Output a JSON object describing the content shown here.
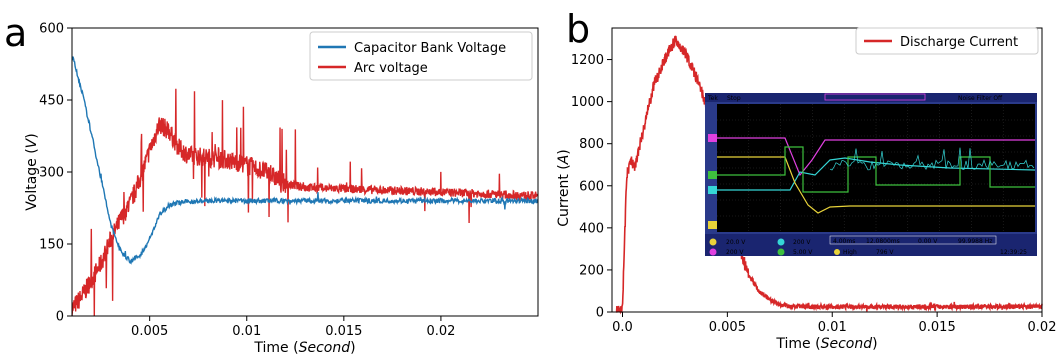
{
  "panels": {
    "a": {
      "letter": "a"
    },
    "b": {
      "letter": "b"
    }
  },
  "chart_data": [
    {
      "type": "line",
      "panel": "a",
      "xlabel": "Time (Second)",
      "ylabel": "Voltage (V)",
      "xlim": [
        0.001,
        0.025
      ],
      "ylim": [
        0,
        600
      ],
      "xticks": [
        0.005,
        0.01,
        0.015,
        0.02
      ],
      "xtick_labels": [
        "0.005",
        "0.01",
        "0.015",
        "0.02"
      ],
      "yticks": [
        0,
        150,
        300,
        450,
        600
      ],
      "ytick_labels": [
        "0",
        "150",
        "300",
        "450",
        "600"
      ],
      "legend_position": "top-right",
      "series": [
        {
          "name": "Capacitor Bank Voltage",
          "color": "#1f77b4",
          "x": [
            0.001,
            0.0015,
            0.002,
            0.0025,
            0.003,
            0.0035,
            0.004,
            0.0045,
            0.005,
            0.0055,
            0.006,
            0.0065,
            0.007,
            0.008,
            0.01,
            0.012,
            0.015,
            0.02,
            0.025
          ],
          "y": [
            545,
            470,
            380,
            285,
            190,
            135,
            115,
            125,
            160,
            210,
            232,
            236,
            238,
            240,
            240,
            240,
            240,
            240,
            240
          ]
        },
        {
          "name": "Arc voltage",
          "color": "#d62728",
          "x": [
            0.001,
            0.0015,
            0.002,
            0.0025,
            0.003,
            0.0035,
            0.004,
            0.0045,
            0.005,
            0.0055,
            0.006,
            0.0065,
            0.007,
            0.008,
            0.009,
            0.01,
            0.011,
            0.012,
            0.013,
            0.015,
            0.017,
            0.02,
            0.022,
            0.025
          ],
          "y": [
            15,
            40,
            75,
            110,
            160,
            200,
            235,
            285,
            345,
            400,
            385,
            350,
            335,
            330,
            325,
            315,
            300,
            275,
            268,
            265,
            262,
            258,
            255,
            250
          ]
        }
      ]
    },
    {
      "type": "line",
      "panel": "b",
      "xlabel": "Time (Second)",
      "ylabel": "Current (A)",
      "xlim": [
        -0.0005,
        0.02
      ],
      "ylim": [
        0,
        1350
      ],
      "xticks": [
        0,
        0.005,
        0.01,
        0.015,
        0.02
      ],
      "xtick_labels": [
        "0.0",
        "0.005",
        "0.01",
        "0.015",
        "0.02"
      ],
      "yticks": [
        0,
        200,
        400,
        600,
        800,
        1000,
        1200
      ],
      "ytick_labels": [
        "0",
        "200",
        "400",
        "600",
        "800",
        "1000",
        "1200"
      ],
      "legend_position": "top-right",
      "series": [
        {
          "name": "Discharge Current",
          "color": "#d62728",
          "x": [
            -0.0003,
            0.0,
            0.0002,
            0.0004,
            0.0006,
            0.001,
            0.0015,
            0.002,
            0.0025,
            0.003,
            0.0035,
            0.004,
            0.0045,
            0.005,
            0.0055,
            0.006,
            0.0065,
            0.007,
            0.0075,
            0.008,
            0.01,
            0.015,
            0.02
          ],
          "y": [
            0,
            20,
            650,
            720,
            690,
            870,
            1080,
            1200,
            1290,
            1230,
            1120,
            980,
            820,
            580,
            330,
            180,
            100,
            60,
            35,
            25,
            25,
            25,
            25
          ]
        }
      ]
    }
  ],
  "oscilloscope": {
    "header": {
      "brand": "Tek",
      "state": "Stop",
      "filter": "Noise Filter Off"
    },
    "channels": [
      {
        "id": "1",
        "scale": "20.0 V"
      },
      {
        "id": "2",
        "scale": "200 V"
      },
      {
        "id": "3",
        "scale": "200 V"
      },
      {
        "id": "4",
        "scale": "5.00 V"
      }
    ],
    "timebase": "4.00ms",
    "position": "12.0800ms",
    "trigger": "0.00 V",
    "frequency": "99.9988 Hz",
    "trigger_mode": "High",
    "trigger_level": "796 V",
    "clock": "12:39:25",
    "colors": {
      "ch1": "#e8d33a",
      "ch2": "#35d6d6",
      "ch3": "#e040e0",
      "ch4": "#3ec03e"
    }
  }
}
